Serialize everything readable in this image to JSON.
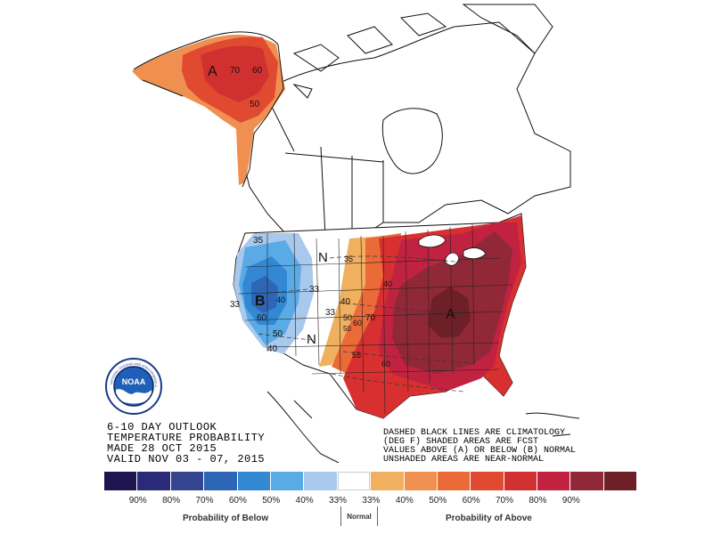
{
  "title_block": {
    "line1": "6-10 DAY OUTLOOK",
    "line2": "TEMPERATURE PROBABILITY",
    "line3": "MADE 28 OCT 2015",
    "line4": "VALID NOV 03 - 07, 2015"
  },
  "notes": {
    "line1": "DASHED BLACK LINES ARE CLIMATOLOGY",
    "line2": "(DEG F) SHADED AREAS ARE FCST",
    "line3": "VALUES ABOVE (A) OR BELOW (B) NORMAL",
    "line4": "UNSHADED AREAS ARE NEAR-NORMAL"
  },
  "map_labels": {
    "ak_center": "A",
    "ak_70": "70",
    "ak_60": "60",
    "ak_50": "50",
    "west_center": "B",
    "west_35": "35",
    "west_33": "33",
    "west_33b": "33",
    "west_40": "40",
    "west_40b": "40",
    "west_50": "50",
    "west_60": "60",
    "north_n": "N",
    "south_n": "N",
    "east_center": "A",
    "east_35": "35",
    "east_33": "33",
    "east_40": "40",
    "east_40b": "40",
    "east_50": "50",
    "east_60": "60",
    "east_70": "70",
    "east_50b": "50",
    "east_55": "55",
    "east_60b": "60"
  },
  "legend": {
    "colors": [
      "#1e1450",
      "#2a2a78",
      "#34448e",
      "#2e66b6",
      "#3388d4",
      "#5aaae6",
      "#a8c8ec",
      "#ffffff",
      "#f0b060",
      "#f09050",
      "#ea6a38",
      "#e04a30",
      "#d03030",
      "#c02240",
      "#902838",
      "#6e2028"
    ],
    "ticks": [
      "90%",
      "80%",
      "70%",
      "60%",
      "50%",
      "40%",
      "33%",
      "33%",
      "40%",
      "50%",
      "60%",
      "70%",
      "80%",
      "90%"
    ],
    "below_label": "Probability of Below",
    "normal_label": "Normal",
    "above_label": "Probability of Above"
  },
  "logo": {
    "text": "NOAA",
    "ring_text": "NATIONAL OCEANIC AND ATMOSPHERIC ADMINISTRATION"
  },
  "map_data": {
    "regions": [
      {
        "name": "alaska",
        "category": "above",
        "max_probability": 70
      },
      {
        "name": "west",
        "category": "below",
        "max_probability": 60
      },
      {
        "name": "central-plains",
        "category": "near-normal"
      },
      {
        "name": "east",
        "category": "above",
        "max_probability": 80
      }
    ]
  }
}
